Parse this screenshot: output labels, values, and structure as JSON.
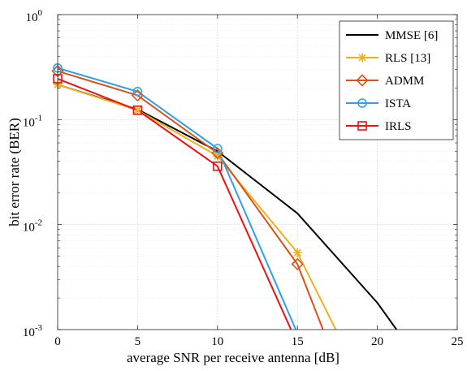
{
  "chart_data": {
    "type": "line",
    "title": "",
    "xlabel": "average SNR per receive antenna [dB]",
    "ylabel": "bit error rate (BER)",
    "xlim": [
      0,
      25
    ],
    "ylim": [
      0.001,
      1
    ],
    "yscale": "log",
    "grid": true,
    "legend_position": "top-right",
    "x_ticks": [
      "0",
      "5",
      "10",
      "15",
      "20",
      "25"
    ],
    "y_ticks": [
      {
        "base": "10",
        "exp": "0"
      },
      {
        "base": "10",
        "exp": "-1"
      },
      {
        "base": "10",
        "exp": "-2"
      },
      {
        "base": "10",
        "exp": "-3"
      }
    ],
    "series": [
      {
        "name": "MMSE [6]",
        "color": "#000000",
        "marker": "none",
        "x": [
          0,
          5,
          10,
          15,
          20,
          21.2
        ],
        "y": [
          0.215,
          0.125,
          0.05,
          0.0128,
          0.0018,
          0.001
        ]
      },
      {
        "name": "RLS [13]",
        "color": "#EDB120",
        "marker": "asterisk",
        "x": [
          0,
          5,
          10,
          15,
          17.4
        ],
        "y": [
          0.215,
          0.123,
          0.045,
          0.0054,
          0.001
        ]
      },
      {
        "name": "ADMM",
        "color": "#D95319",
        "marker": "diamond",
        "x": [
          0,
          5,
          10,
          15,
          16.6
        ],
        "y": [
          0.29,
          0.17,
          0.048,
          0.0042,
          0.001
        ]
      },
      {
        "name": "ISTA",
        "color": "#2E9FEA",
        "marker": "circle",
        "x": [
          0,
          5,
          10,
          14.9
        ],
        "y": [
          0.31,
          0.185,
          0.053,
          0.001
        ]
      },
      {
        "name": "IRLS",
        "color": "#EE1111",
        "marker": "square",
        "x": [
          0,
          5,
          10,
          14.6
        ],
        "y": [
          0.245,
          0.123,
          0.036,
          0.001
        ]
      }
    ]
  }
}
